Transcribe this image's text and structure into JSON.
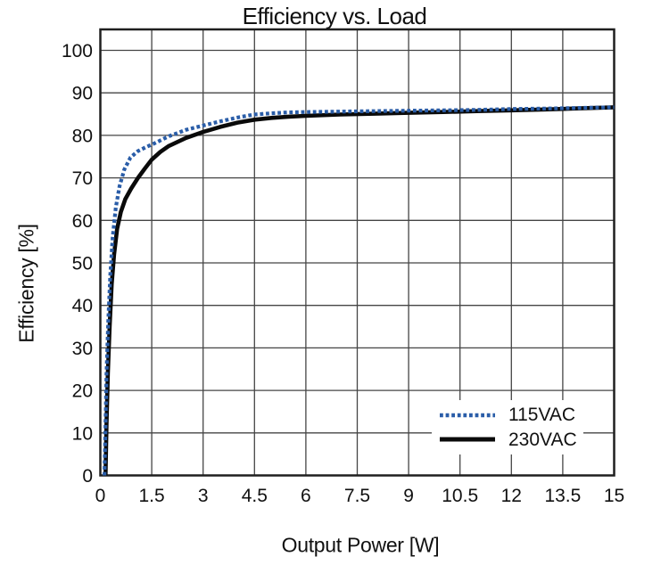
{
  "chart_data": {
    "type": "line",
    "title": "Efficiency vs. Load",
    "xlabel": "Output Power [W]",
    "ylabel": "Efficiency [%]",
    "xlim": [
      0,
      15
    ],
    "ylim": [
      0,
      105
    ],
    "x_ticks": [
      0,
      1.5,
      3,
      4.5,
      6,
      7.5,
      9,
      10.5,
      12,
      13.5,
      15
    ],
    "y_ticks": [
      0,
      10,
      20,
      30,
      40,
      50,
      60,
      70,
      80,
      90,
      100
    ],
    "grid": true,
    "grid_color": "#454545",
    "frame_color": "#1f1f1f",
    "legend_position": "lower-right-inside",
    "series": [
      {
        "name": "115VAC",
        "style": "dotted",
        "color": "#2a5da8",
        "points": [
          [
            0.12,
            0
          ],
          [
            0.15,
            12
          ],
          [
            0.18,
            24
          ],
          [
            0.23,
            36
          ],
          [
            0.29,
            47
          ],
          [
            0.36,
            56
          ],
          [
            0.45,
            63
          ],
          [
            0.56,
            68
          ],
          [
            0.7,
            72
          ],
          [
            0.88,
            74.8
          ],
          [
            1.1,
            76.3
          ],
          [
            1.35,
            77.3
          ],
          [
            1.6,
            78.2
          ],
          [
            2.0,
            79.8
          ],
          [
            2.5,
            81.3
          ],
          [
            3.0,
            82.3
          ],
          [
            3.5,
            83.3
          ],
          [
            4.0,
            84.2
          ],
          [
            4.5,
            84.9
          ],
          [
            5.0,
            85.2
          ],
          [
            5.5,
            85.4
          ],
          [
            6.0,
            85.5
          ],
          [
            7.0,
            85.6
          ],
          [
            8.0,
            85.7
          ],
          [
            9.0,
            85.8
          ],
          [
            10.0,
            85.9
          ],
          [
            11.0,
            86.0
          ],
          [
            12.0,
            86.2
          ],
          [
            13.0,
            86.3
          ],
          [
            14.0,
            86.45
          ],
          [
            15.0,
            86.6
          ]
        ]
      },
      {
        "name": "230VAC",
        "style": "solid",
        "color": "#0a0a0a",
        "points": [
          [
            0.15,
            0
          ],
          [
            0.18,
            12
          ],
          [
            0.22,
            24
          ],
          [
            0.27,
            35
          ],
          [
            0.33,
            45
          ],
          [
            0.4,
            52
          ],
          [
            0.49,
            58
          ],
          [
            0.6,
            62
          ],
          [
            0.73,
            65
          ],
          [
            0.9,
            67.5
          ],
          [
            1.1,
            70
          ],
          [
            1.3,
            72.2
          ],
          [
            1.5,
            74.3
          ],
          [
            1.75,
            76.1
          ],
          [
            2.0,
            77.5
          ],
          [
            2.5,
            79.4
          ],
          [
            3.0,
            80.8
          ],
          [
            3.5,
            82.0
          ],
          [
            4.0,
            83.0
          ],
          [
            4.5,
            83.7
          ],
          [
            5.0,
            84.1
          ],
          [
            5.5,
            84.4
          ],
          [
            6.0,
            84.6
          ],
          [
            7.0,
            84.9
          ],
          [
            8.0,
            85.1
          ],
          [
            9.0,
            85.3
          ],
          [
            10.0,
            85.5
          ],
          [
            11.0,
            85.7
          ],
          [
            12.0,
            85.9
          ],
          [
            13.0,
            86.1
          ],
          [
            14.0,
            86.35
          ],
          [
            15.0,
            86.6
          ]
        ]
      }
    ]
  }
}
